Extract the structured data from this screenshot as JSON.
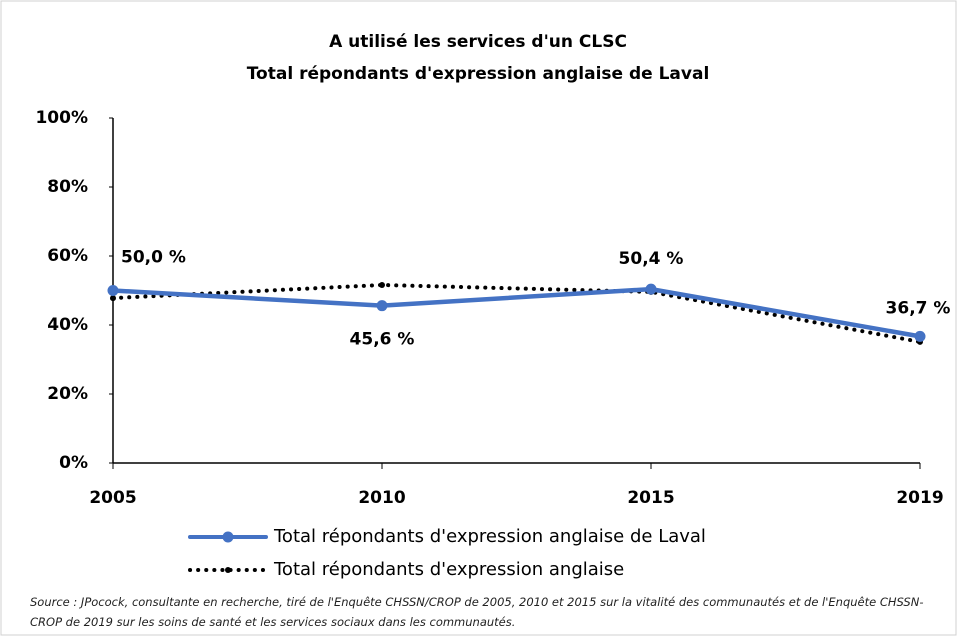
{
  "chart_data": {
    "type": "line",
    "title": "A utilisé les services d'un CLSC",
    "subtitle": "Total répondants d'expression anglaise de Laval",
    "categories": [
      "2005",
      "2010",
      "2015",
      "2019"
    ],
    "series": [
      {
        "name": "Total répondants d'expression anglaise de Laval",
        "color": "#4472c4",
        "style": "solid",
        "values": [
          50.0,
          45.6,
          50.4,
          36.7
        ],
        "value_labels": [
          "50,0 %",
          "45,6 %",
          "50,4 %",
          "36,7 %"
        ]
      },
      {
        "name": "Total répondants d'expression anglaise",
        "color": "#000000",
        "style": "dotted",
        "values": [
          47.8,
          51.6,
          49.6,
          35.1
        ]
      }
    ],
    "ylim": [
      0,
      100
    ],
    "yticks": [
      {
        "value": 0,
        "label": "0%"
      },
      {
        "value": 20,
        "label": "20%"
      },
      {
        "value": 40,
        "label": "40%"
      },
      {
        "value": 60,
        "label": "60%"
      },
      {
        "value": 80,
        "label": "80%"
      },
      {
        "value": 100,
        "label": "100%"
      }
    ],
    "grid": false,
    "legend": "bottom",
    "note": "Source : JPocock, consultante en recherche, tiré de l'Enquête CHSSN/CROP de 2005, 2010 et 2015 sur la vitalité des communautés et de l'Enquête CHSSN-CROP de 2019 sur les soins de santé et les services sociaux dans les communautés."
  }
}
